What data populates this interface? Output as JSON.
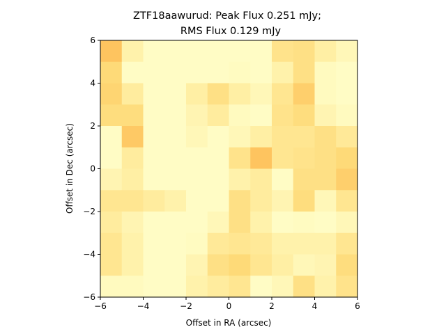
{
  "chart_data": {
    "type": "heatmap",
    "title_line1": "ZTF18aawurud: Peak Flux 0.251 mJy;",
    "title_line2": "RMS Flux 0.129 mJy",
    "xlabel": "Offset in RA (arcsec)",
    "ylabel": "Offset in Dec (arcsec)",
    "xlim": [
      -6,
      6
    ],
    "ylim": [
      -6,
      6
    ],
    "xticks": [
      -6,
      -4,
      -2,
      0,
      2,
      4,
      6
    ],
    "yticks": [
      -6,
      -4,
      -2,
      0,
      2,
      4,
      6
    ],
    "xtick_labels": [
      "−6",
      "−4",
      "−2",
      "0",
      "2",
      "4",
      "6"
    ],
    "ytick_labels": [
      "−6",
      "−4",
      "−2",
      "0",
      "2",
      "4",
      "6"
    ],
    "colormap": [
      "#ffffcc",
      "#ffeda0",
      "#fed976",
      "#feb24c"
    ],
    "grid_size": 12,
    "rows_top_to_bottom": [
      [
        0.85,
        0.25,
        0.05,
        0.05,
        0.05,
        0.05,
        0.05,
        0.05,
        0.5,
        0.55,
        0.3,
        0.15
      ],
      [
        0.65,
        0.05,
        0.05,
        0.05,
        0.05,
        0.05,
        0.08,
        0.05,
        0.25,
        0.55,
        0.1,
        0.05
      ],
      [
        0.7,
        0.35,
        0.05,
        0.05,
        0.3,
        0.55,
        0.3,
        0.15,
        0.45,
        0.75,
        0.1,
        0.05
      ],
      [
        0.6,
        0.6,
        0.05,
        0.05,
        0.2,
        0.35,
        0.1,
        0.05,
        0.5,
        0.6,
        0.2,
        0.1
      ],
      [
        0.05,
        0.8,
        0.05,
        0.05,
        0.15,
        0.05,
        0.15,
        0.3,
        0.45,
        0.45,
        0.55,
        0.4
      ],
      [
        0.05,
        0.35,
        0.05,
        0.05,
        0.05,
        0.05,
        0.5,
        0.85,
        0.45,
        0.5,
        0.55,
        0.65
      ],
      [
        0.2,
        0.3,
        0.05,
        0.05,
        0.05,
        0.05,
        0.25,
        0.35,
        0.05,
        0.55,
        0.55,
        0.75
      ],
      [
        0.45,
        0.45,
        0.35,
        0.25,
        0.05,
        0.05,
        0.55,
        0.35,
        0.2,
        0.6,
        0.15,
        0.45
      ],
      [
        0.35,
        0.2,
        0.05,
        0.05,
        0.05,
        0.15,
        0.55,
        0.25,
        0.05,
        0.08,
        0.05,
        0.15
      ],
      [
        0.45,
        0.25,
        0.05,
        0.05,
        0.08,
        0.4,
        0.45,
        0.4,
        0.25,
        0.25,
        0.25,
        0.45
      ],
      [
        0.45,
        0.25,
        0.05,
        0.05,
        0.2,
        0.55,
        0.65,
        0.45,
        0.3,
        0.15,
        0.2,
        0.6
      ],
      [
        0.1,
        0.1,
        0.05,
        0.05,
        0.25,
        0.35,
        0.45,
        0.05,
        0.15,
        0.55,
        0.25,
        0.5
      ]
    ]
  }
}
